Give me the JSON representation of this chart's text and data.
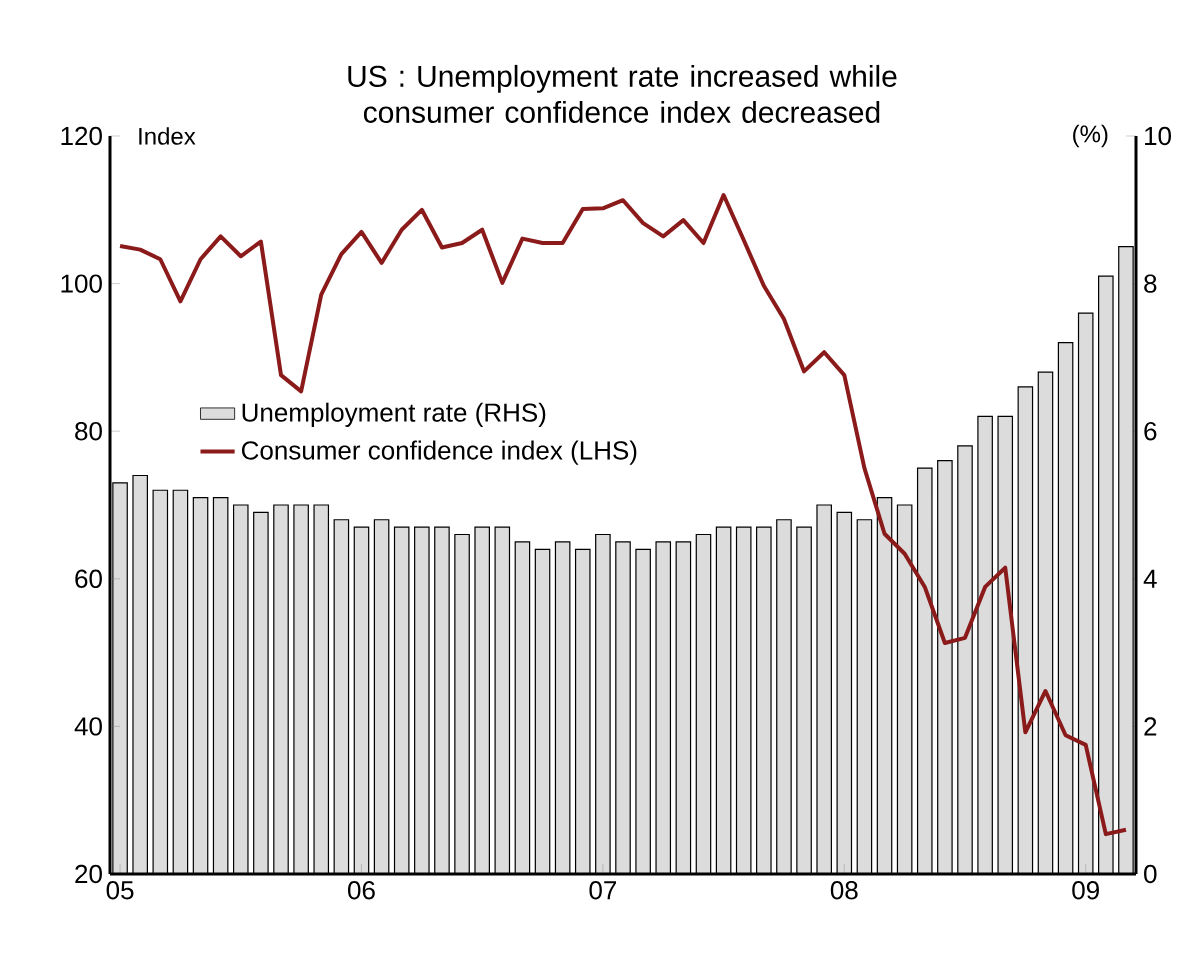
{
  "chart_data": {
    "type": "bar",
    "title": "US : Unemployment rate increased while consumer confidence index decreased",
    "ylabel": "Index",
    "y2label": "(%)",
    "categories": [
      "05",
      null,
      null,
      null,
      null,
      null,
      null,
      null,
      null,
      null,
      null,
      null,
      "06",
      null,
      null,
      null,
      null,
      null,
      null,
      null,
      null,
      null,
      null,
      null,
      "07",
      null,
      null,
      null,
      null,
      null,
      null,
      null,
      null,
      null,
      null,
      null,
      "08",
      null,
      null,
      null,
      null,
      null,
      null,
      null,
      null,
      null,
      null,
      null,
      "09",
      null,
      null
    ],
    "series": [
      {
        "name": "Unemployment rate (RHS)",
        "axis": "y2",
        "color": "#dcdcdc",
        "values": [
          5.3,
          5.4,
          5.2,
          5.2,
          5.1,
          5.1,
          5.0,
          4.9,
          5.0,
          5.0,
          5.0,
          4.8,
          4.7,
          4.8,
          4.7,
          4.7,
          4.7,
          4.6,
          4.7,
          4.7,
          4.5,
          4.4,
          4.5,
          4.4,
          4.6,
          4.5,
          4.4,
          4.5,
          4.5,
          4.6,
          4.7,
          4.7,
          4.7,
          4.8,
          4.7,
          5.0,
          4.9,
          4.8,
          5.1,
          5.0,
          5.5,
          5.6,
          5.8,
          6.2,
          6.2,
          6.6,
          6.8,
          7.2,
          7.6,
          8.1,
          8.5
        ]
      },
      {
        "name": "Consumer confidence index (LHS)",
        "type": "line",
        "axis": "y",
        "color": "#8b1a1a",
        "values": [
          105.1,
          104.6,
          103.3,
          97.6,
          103.3,
          106.4,
          103.7,
          105.7,
          87.6,
          85.4,
          98.5,
          104.0,
          107.0,
          102.8,
          107.3,
          110.0,
          104.9,
          105.5,
          107.3,
          100.1,
          106.1,
          105.5,
          105.5,
          110.1,
          110.2,
          111.3,
          108.2,
          106.4,
          108.6,
          105.5,
          112.0,
          105.9,
          99.7,
          95.2,
          88.1,
          90.7,
          87.6,
          75.0,
          66.1,
          63.4,
          58.9,
          51.3,
          52.0,
          58.9,
          61.5,
          39.2,
          44.8,
          38.8,
          37.5,
          25.4,
          26.0
        ]
      }
    ],
    "ylim": [
      20,
      120
    ],
    "yticks": [
      20,
      40,
      60,
      80,
      100,
      120
    ],
    "y2lim": [
      0,
      10
    ],
    "y2ticks": [
      0,
      2,
      4,
      6,
      8,
      10
    ],
    "legend": "left"
  }
}
